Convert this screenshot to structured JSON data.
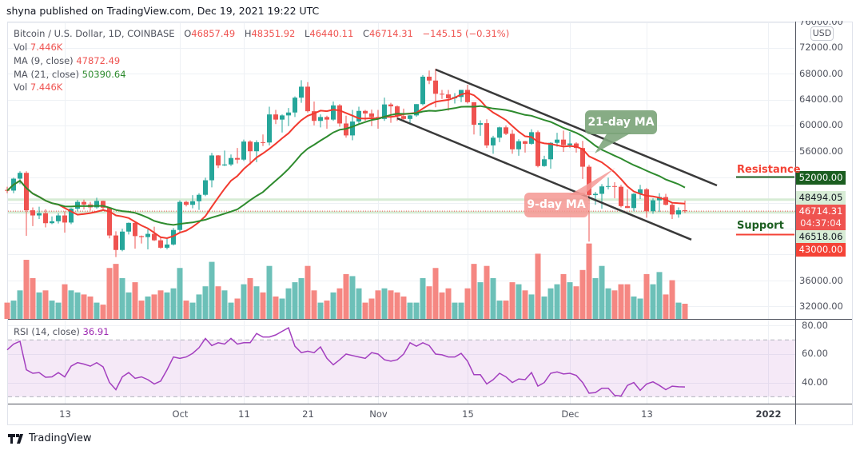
{
  "header": {
    "published": "shyna published on TradingView.com, Dec 19, 2021 19:22 UTC"
  },
  "legend": {
    "symbol": "Bitcoin / U.S. Dollar, 1D, COINBASE",
    "o_label": "O",
    "o": "46857.49",
    "h_label": "H",
    "h": "48351.92",
    "l_label": "L",
    "l": "46440.11",
    "c_label": "C",
    "c": "46714.31",
    "change": "−145.15 (−0.31%)",
    "vol_label": "Vol",
    "vol": "7.446K",
    "ma9_label": "MA (9, close)",
    "ma9": "47872.49",
    "ma21_label": "MA (21, close)",
    "ma21": "50390.64",
    "vol2_label": "Vol",
    "vol2": "7.446K",
    "rsi_label": "RSI (14, close)",
    "rsi": "36.91"
  },
  "price_axis": {
    "currency": "USD",
    "ticks": [
      "76000.00",
      "72000.00",
      "68000.00",
      "64000.00",
      "60000.00",
      "56000.00",
      "36000.00",
      "32000.00"
    ],
    "labels": {
      "resistance": "52000.00",
      "band_high": "48494.05",
      "last_price": "46714.31",
      "countdown": "04:37:04",
      "band_low": "46518.06",
      "support": "43000.00"
    }
  },
  "rsi_axis": {
    "ticks": [
      "80.00",
      "60.00",
      "40.00"
    ]
  },
  "annotations": {
    "resistance_text": "Resistance",
    "support_text": "Support",
    "ma21_callout": "21-day MA",
    "ma9_callout": "9-day MA"
  },
  "footer": {
    "brand": "TradingView"
  },
  "colors": {
    "up": "#26a69a",
    "down": "#ef5350",
    "ma9": "#f23a2f",
    "ma21": "#2e8b2e",
    "rsi": "#a33fbf",
    "resistance_line": "#1b5e20",
    "support_line": "#f44336"
  },
  "chart_data": {
    "type": "candlestick",
    "symbol": "BTCUSD",
    "interval": "1D",
    "ylim": [
      30000,
      77500
    ],
    "columns": [
      "date",
      "open",
      "high",
      "low",
      "close",
      "volume_k"
    ],
    "candles": [
      [
        "2021-09-04",
        50000,
        50500,
        49500,
        49900,
        8
      ],
      [
        "2021-09-05",
        49900,
        51900,
        49500,
        51750,
        9
      ],
      [
        "2021-09-06",
        51750,
        52900,
        50900,
        52650,
        14
      ],
      [
        "2021-09-07",
        52650,
        52900,
        42900,
        46850,
        29
      ],
      [
        "2021-09-08",
        46850,
        47300,
        44400,
        46050,
        20
      ],
      [
        "2021-09-09",
        46050,
        47400,
        45500,
        46400,
        13
      ],
      [
        "2021-09-10",
        46400,
        47000,
        44200,
        44850,
        14
      ],
      [
        "2021-09-11",
        44850,
        45900,
        44700,
        45150,
        9
      ],
      [
        "2021-09-12",
        45150,
        46400,
        44800,
        46050,
        8
      ],
      [
        "2021-09-13",
        46050,
        46700,
        43400,
        44950,
        17
      ],
      [
        "2021-09-14",
        44950,
        47200,
        44700,
        47100,
        14
      ],
      [
        "2021-09-15",
        47100,
        48450,
        46700,
        48150,
        13
      ],
      [
        "2021-09-16",
        48150,
        48500,
        47000,
        47750,
        12
      ],
      [
        "2021-09-17",
        47750,
        48150,
        46800,
        47300,
        11
      ],
      [
        "2021-09-18",
        47300,
        48800,
        47100,
        48300,
        8
      ],
      [
        "2021-09-19",
        48300,
        48350,
        46900,
        47250,
        7
      ],
      [
        "2021-09-20",
        47250,
        47350,
        42500,
        42950,
        25
      ],
      [
        "2021-09-21",
        42950,
        43600,
        39600,
        40700,
        27
      ],
      [
        "2021-09-22",
        40700,
        44000,
        40500,
        43550,
        20
      ],
      [
        "2021-09-23",
        43550,
        44950,
        43100,
        44900,
        13
      ],
      [
        "2021-09-24",
        44900,
        45100,
        40900,
        42850,
        18
      ],
      [
        "2021-09-25",
        42850,
        42950,
        41700,
        42700,
        9
      ],
      [
        "2021-09-26",
        42700,
        43900,
        40800,
        43200,
        11
      ],
      [
        "2021-09-27",
        43200,
        44300,
        42100,
        42200,
        12
      ],
      [
        "2021-09-28",
        42200,
        42750,
        40900,
        41050,
        14
      ],
      [
        "2021-09-29",
        41050,
        42600,
        40800,
        41550,
        13
      ],
      [
        "2021-09-30",
        41550,
        44100,
        41400,
        43800,
        15
      ],
      [
        "2021-10-01",
        43800,
        48400,
        43300,
        48150,
        25
      ],
      [
        "2021-10-02",
        48150,
        48300,
        47450,
        47700,
        9
      ],
      [
        "2021-10-03",
        47700,
        49200,
        47150,
        48250,
        8
      ],
      [
        "2021-10-04",
        48250,
        49500,
        46900,
        49250,
        12
      ],
      [
        "2021-10-05",
        49250,
        51900,
        49050,
        51500,
        16
      ],
      [
        "2021-10-06",
        51500,
        55750,
        50400,
        55350,
        28
      ],
      [
        "2021-10-07",
        55350,
        55400,
        53400,
        53800,
        16
      ],
      [
        "2021-10-08",
        53800,
        56100,
        53700,
        53950,
        14
      ],
      [
        "2021-10-09",
        53950,
        55500,
        53700,
        54950,
        8
      ],
      [
        "2021-10-10",
        54950,
        56500,
        54100,
        54700,
        10
      ],
      [
        "2021-10-11",
        54700,
        57800,
        54500,
        57500,
        17
      ],
      [
        "2021-10-12",
        57500,
        57700,
        53900,
        56000,
        20
      ],
      [
        "2021-10-13",
        56000,
        57700,
        54300,
        57400,
        16
      ],
      [
        "2021-10-14",
        57400,
        58600,
        56800,
        57350,
        13
      ],
      [
        "2021-10-15",
        57350,
        62900,
        56900,
        61700,
        26
      ],
      [
        "2021-10-16",
        61700,
        62400,
        60200,
        60900,
        11
      ],
      [
        "2021-10-17",
        60900,
        61700,
        58900,
        61550,
        10
      ],
      [
        "2021-10-18",
        61550,
        62700,
        59900,
        62000,
        15
      ],
      [
        "2021-10-19",
        62000,
        64500,
        61300,
        64300,
        18
      ],
      [
        "2021-10-20",
        64300,
        67000,
        63500,
        66000,
        20
      ],
      [
        "2021-10-21",
        66000,
        66700,
        62000,
        62200,
        26
      ],
      [
        "2021-10-22",
        62200,
        63700,
        60000,
        60700,
        14
      ],
      [
        "2021-10-23",
        60700,
        61700,
        59700,
        61300,
        8
      ],
      [
        "2021-10-24",
        61300,
        61500,
        59500,
        60900,
        9
      ],
      [
        "2021-10-25",
        60900,
        63700,
        60700,
        63100,
        13
      ],
      [
        "2021-10-26",
        63100,
        63300,
        59800,
        60300,
        15
      ],
      [
        "2021-10-27",
        60300,
        61500,
        58100,
        58450,
        22
      ],
      [
        "2021-10-28",
        58450,
        62400,
        57700,
        60600,
        21
      ],
      [
        "2021-10-29",
        60600,
        62900,
        60200,
        62250,
        15
      ],
      [
        "2021-10-30",
        62250,
        62400,
        60700,
        61850,
        8
      ],
      [
        "2021-10-31",
        61850,
        62450,
        59900,
        61300,
        10
      ],
      [
        "2021-11-01",
        61300,
        62400,
        59500,
        61000,
        14
      ],
      [
        "2021-11-02",
        61000,
        64300,
        60700,
        63250,
        15
      ],
      [
        "2021-11-03",
        63250,
        63500,
        60400,
        62950,
        14
      ],
      [
        "2021-11-04",
        62950,
        63100,
        60700,
        61450,
        13
      ],
      [
        "2021-11-05",
        61450,
        62600,
        60800,
        61000,
        11
      ],
      [
        "2021-11-06",
        61000,
        61600,
        60100,
        61550,
        8
      ],
      [
        "2021-11-07",
        61550,
        63300,
        61350,
        63300,
        8
      ],
      [
        "2021-11-08",
        63300,
        67800,
        63100,
        67550,
        20
      ],
      [
        "2021-11-09",
        67550,
        68500,
        66400,
        66950,
        16
      ],
      [
        "2021-11-10",
        66950,
        68800,
        62800,
        64900,
        25
      ],
      [
        "2021-11-11",
        64900,
        65500,
        64100,
        64800,
        13
      ],
      [
        "2021-11-12",
        64800,
        65500,
        62300,
        64200,
        15
      ],
      [
        "2021-11-13",
        64200,
        65000,
        63400,
        64400,
        8
      ],
      [
        "2021-11-14",
        64400,
        65500,
        63600,
        65500,
        8
      ],
      [
        "2021-11-15",
        65500,
        66300,
        63400,
        63600,
        15
      ],
      [
        "2021-11-16",
        63600,
        63600,
        58600,
        60100,
        27
      ],
      [
        "2021-11-17",
        60100,
        60800,
        58400,
        60350,
        18
      ],
      [
        "2021-11-18",
        60350,
        60950,
        56500,
        56900,
        26
      ],
      [
        "2021-11-19",
        56900,
        58400,
        55600,
        58100,
        20
      ],
      [
        "2021-11-20",
        58100,
        59800,
        57400,
        59700,
        9
      ],
      [
        "2021-11-21",
        59700,
        60000,
        58500,
        58700,
        9
      ],
      [
        "2021-11-22",
        58700,
        59300,
        55600,
        56300,
        18
      ],
      [
        "2021-11-23",
        56300,
        57850,
        55300,
        57550,
        17
      ],
      [
        "2021-11-24",
        57550,
        57600,
        55800,
        57150,
        14
      ],
      [
        "2021-11-25",
        57150,
        59400,
        57000,
        58950,
        12
      ],
      [
        "2021-11-26",
        58950,
        59200,
        53500,
        53700,
        32
      ],
      [
        "2021-11-27",
        53700,
        55300,
        53600,
        54750,
        11
      ],
      [
        "2021-11-28",
        54750,
        57400,
        53300,
        57300,
        15
      ],
      [
        "2021-11-29",
        57300,
        58850,
        56700,
        57800,
        17
      ],
      [
        "2021-11-30",
        57800,
        59200,
        55900,
        56950,
        22
      ],
      [
        "2021-12-01",
        56950,
        59000,
        56500,
        57200,
        18
      ],
      [
        "2021-12-02",
        57200,
        57400,
        55800,
        56500,
        16
      ],
      [
        "2021-12-03",
        56500,
        57600,
        51700,
        53600,
        24
      ],
      [
        "2021-12-04",
        53600,
        53900,
        42000,
        49200,
        37
      ],
      [
        "2021-12-05",
        49200,
        49700,
        47700,
        49400,
        20
      ],
      [
        "2021-12-06",
        49400,
        50900,
        47100,
        50550,
        26
      ],
      [
        "2021-12-07",
        50550,
        51900,
        50100,
        50600,
        15
      ],
      [
        "2021-12-08",
        50600,
        51200,
        48700,
        50500,
        14
      ],
      [
        "2021-12-09",
        50500,
        50800,
        47300,
        47500,
        17
      ],
      [
        "2021-12-10",
        47500,
        50100,
        47200,
        47200,
        17
      ],
      [
        "2021-12-11",
        47200,
        49500,
        46700,
        49400,
        11
      ],
      [
        "2021-12-12",
        49400,
        50800,
        48600,
        50100,
        10
      ],
      [
        "2021-12-13",
        50100,
        50300,
        45700,
        46700,
        22
      ],
      [
        "2021-12-14",
        46700,
        48700,
        46300,
        48400,
        17
      ],
      [
        "2021-12-15",
        48400,
        49500,
        46600,
        48900,
        23
      ],
      [
        "2021-12-16",
        48900,
        49400,
        47600,
        47700,
        12
      ],
      [
        "2021-12-17",
        47700,
        48000,
        45500,
        46200,
        19
      ],
      [
        "2021-12-18",
        46200,
        47300,
        45700,
        46850,
        8
      ],
      [
        "2021-12-19",
        46857.49,
        48351.92,
        46440.11,
        46714.31,
        7.446
      ]
    ],
    "rsi": [
      63,
      67,
      69,
      49,
      46.5,
      47,
      43.7,
      44,
      47,
      44,
      51.5,
      54,
      53,
      51.5,
      54,
      51,
      40,
      35,
      44,
      47,
      43,
      44,
      42,
      39,
      41,
      49,
      58,
      57,
      58,
      60.5,
      64.5,
      71,
      66,
      68,
      67,
      71,
      67,
      68,
      68,
      74.5,
      72,
      72,
      73.5,
      76,
      78.5,
      65.5,
      61,
      62,
      61,
      65,
      57,
      52.5,
      56,
      60,
      59,
      58,
      57,
      61,
      60,
      56,
      55,
      56,
      60,
      68,
      65.5,
      68,
      66,
      60,
      59.5,
      58,
      58,
      60.5,
      55,
      45.5,
      45.5,
      39,
      42,
      46.5,
      44,
      40,
      42.5,
      42,
      47,
      37.5,
      40,
      46.5,
      47.5,
      46,
      46.5,
      45,
      40,
      32.5,
      33,
      36,
      36,
      31,
      30.5,
      38,
      40,
      34.5,
      39,
      40.5,
      38,
      35,
      37.5,
      37,
      36.91
    ],
    "rsi_levels": {
      "upper": 70,
      "lower": 30
    },
    "rsi_ylim": [
      20,
      84
    ],
    "moving_averages": [
      {
        "name": "MA (9, close)",
        "period": 9
      },
      {
        "name": "MA (21, close)",
        "period": 21
      }
    ],
    "horizontal_levels": {
      "resistance": 52000,
      "support": 43000,
      "band_high": 48494.05,
      "band_low": 46518.06,
      "last_price": 46714.31
    },
    "trendlines": [
      {
        "from": [
          "2021-11-10",
          68660
        ],
        "to": [
          "2021-12-24",
          50700
        ]
      },
      {
        "from": [
          "2021-11-04",
          61100
        ],
        "to": [
          "2021-12-20",
          42300
        ]
      }
    ],
    "x_ticks": [
      {
        "date": "2021-09-13",
        "label": "13"
      },
      {
        "date": "2021-10-01",
        "label": "Oct"
      },
      {
        "date": "2021-10-11",
        "label": "11"
      },
      {
        "date": "2021-10-21",
        "label": "21"
      },
      {
        "date": "2021-11-01",
        "label": "Nov"
      },
      {
        "date": "2021-11-15",
        "label": "15"
      },
      {
        "date": "2021-12-01",
        "label": "Dec"
      },
      {
        "date": "2021-12-13",
        "label": "13"
      },
      {
        "date": "2022-01-01",
        "label": "2022",
        "bold": true
      }
    ],
    "y_tick_values": [
      76000,
      72000,
      68000,
      64000,
      60000,
      56000,
      52000,
      48000,
      44000,
      40000,
      36000,
      32000
    ],
    "grid": true
  }
}
